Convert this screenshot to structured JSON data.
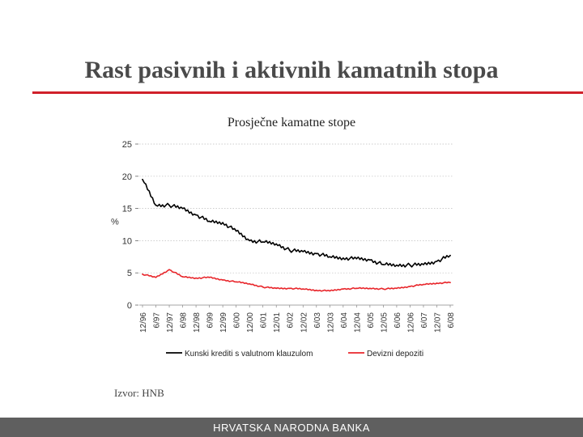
{
  "slide": {
    "title": "Rast pasivnih i aktivnih kamatnih stopa",
    "source": "Izvor: HNB",
    "footer": "HRVATSKA NARODNA BANKA",
    "accent_color": "#d0202a"
  },
  "chart_data": {
    "type": "line",
    "title": "Prosječne kamatne stope",
    "xlabel": "",
    "ylabel": "%",
    "ylim": [
      0,
      25
    ],
    "yticks": [
      "0",
      "5",
      "10",
      "15",
      "20",
      "25"
    ],
    "grid": true,
    "legend_position": "bottom",
    "categories": [
      "12/96",
      "6/97",
      "12/97",
      "6/98",
      "12/98",
      "6/99",
      "12/99",
      "6/00",
      "12/00",
      "6/01",
      "12/01",
      "6/02",
      "12/02",
      "6/03",
      "12/03",
      "6/04",
      "12/04",
      "6/05",
      "12/05",
      "6/06",
      "12/06",
      "6/07",
      "12/07",
      "6/08"
    ],
    "series": [
      {
        "name": "Kunski krediti s valutnom klauzulom",
        "color": "#000000",
        "values": [
          19.5,
          15.5,
          15.5,
          15.0,
          14.0,
          13.0,
          12.8,
          11.5,
          10.0,
          9.8,
          9.5,
          8.5,
          8.3,
          8.0,
          7.5,
          7.3,
          7.2,
          7.0,
          6.3,
          6.2,
          6.2,
          6.3,
          6.8,
          7.7
        ]
      },
      {
        "name": "Devizni depoziti",
        "color": "#e8262b",
        "values": [
          4.8,
          4.3,
          5.5,
          4.4,
          4.2,
          4.3,
          3.9,
          3.6,
          3.3,
          2.8,
          2.6,
          2.6,
          2.5,
          2.3,
          2.2,
          2.5,
          2.6,
          2.6,
          2.5,
          2.6,
          2.9,
          3.2,
          3.4,
          3.5
        ]
      }
    ]
  }
}
